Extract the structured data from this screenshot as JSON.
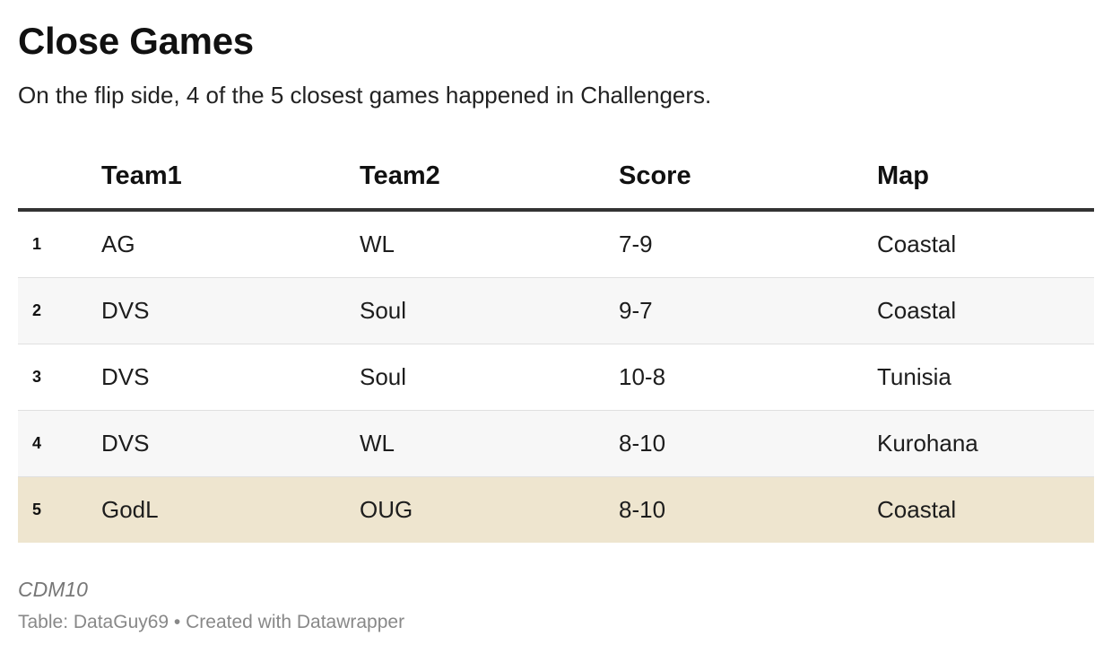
{
  "title": "Close Games",
  "subtitle": "On the flip side, 4 of the 5 closest games happened in Challengers.",
  "notes": "CDM10",
  "source": "Table: DataGuy69 • Created with Datawrapper",
  "colors": {
    "highlight_row": "#eee5cf",
    "alt_row": "#f7f7f7",
    "header_rule": "#333333"
  },
  "chart_data": {
    "type": "table",
    "columns": [
      "",
      "Team1",
      "Team2",
      "Score",
      "Map"
    ],
    "rows": [
      [
        "1",
        "AG",
        "WL",
        "7-9",
        "Coastal"
      ],
      [
        "2",
        "DVS",
        "Soul",
        "9-7",
        "Coastal"
      ],
      [
        "3",
        "DVS",
        "Soul",
        "10-8",
        "Tunisia"
      ],
      [
        "4",
        "DVS",
        "WL",
        "8-10",
        "Kurohana"
      ],
      [
        "5",
        "GodL",
        "OUG",
        "8-10",
        "Coastal"
      ]
    ],
    "highlighted_row": 5
  }
}
